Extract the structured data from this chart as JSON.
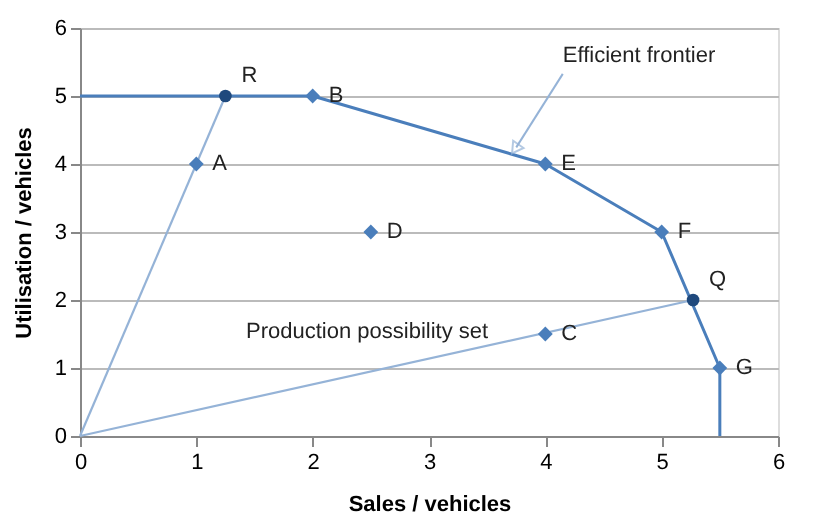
{
  "chart_data": {
    "type": "scatter",
    "xlabel": "Sales / vehicles",
    "ylabel": "Utilisation / vehicles",
    "xlim": [
      0,
      6
    ],
    "ylim": [
      0,
      6
    ],
    "xticks": [
      0,
      1,
      2,
      3,
      4,
      5,
      6
    ],
    "yticks": [
      0,
      1,
      2,
      3,
      4,
      5,
      6
    ],
    "grid": "y",
    "series": [
      {
        "type": "line",
        "color": "#4a7ebb",
        "marker": "none",
        "line_style": "solid",
        "x": [
          0,
          2,
          4,
          5,
          5.5,
          5.5
        ],
        "values": [
          5,
          5,
          4,
          3,
          1,
          0
        ]
      },
      {
        "type": "line",
        "color": "#95b3d7",
        "marker": "none",
        "line_style": "solid",
        "x": [
          0,
          1.25
        ],
        "values": [
          0,
          5
        ]
      },
      {
        "type": "line",
        "color": "#95b3d7",
        "marker": "none",
        "line_style": "solid",
        "x": [
          0,
          5.27
        ],
        "values": [
          0,
          2
        ]
      },
      {
        "color": "#4a7ebb",
        "marker": "diamond",
        "x": [
          1,
          2,
          4,
          5,
          5.5,
          2.5,
          4
        ],
        "values": [
          4,
          5,
          4,
          3,
          1,
          3,
          1.5
        ],
        "value_labels": [
          "A",
          "B",
          "E",
          "F",
          "G",
          "D",
          "C"
        ]
      },
      {
        "color": "#1f497d",
        "marker": "circle",
        "x": [
          1.25,
          5.27
        ],
        "values": [
          5,
          2
        ],
        "value_labels": [
          "R",
          "Q"
        ]
      }
    ],
    "annotations": [
      {
        "text": "Efficient frontier",
        "x": 3.75,
        "y": 4.125
      },
      "Production possibility set"
    ]
  }
}
